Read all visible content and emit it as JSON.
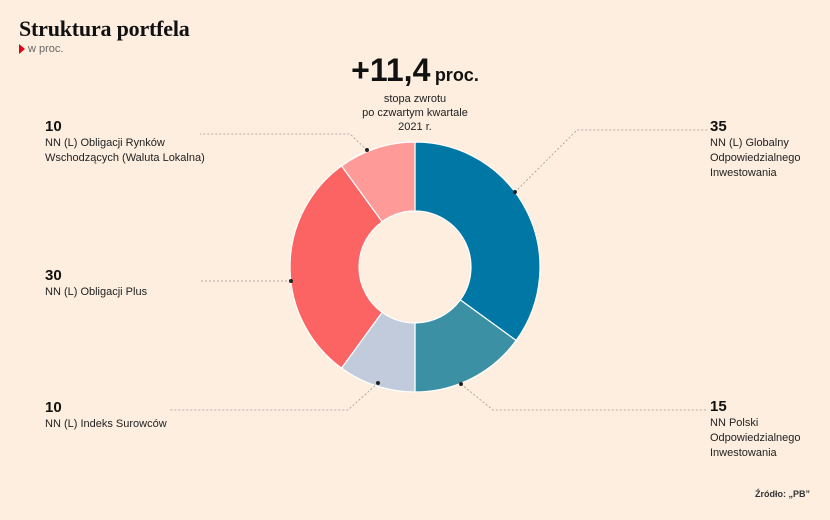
{
  "header": {
    "title": "Struktura portfela",
    "subtitle": "w proc."
  },
  "headline": {
    "value": "+11,4",
    "unit": "proc.",
    "caption": [
      "stopa zwrotu",
      "po czwartym kwartale",
      "2021 r."
    ]
  },
  "source": "Źródło: „PB”",
  "colors": {
    "background": "#fdeee0",
    "accent": "#e3001b",
    "globalny": "#0077a5",
    "polski": "#3b91a3",
    "surowcow": "#c1cbdc",
    "plus": "#fc6464",
    "rynkow": "#fe9a98"
  },
  "chart_data": {
    "type": "pie",
    "variant": "donut",
    "title": "Struktura portfela",
    "subtitle": "w proc.",
    "series": [
      {
        "label_lines": [
          "NN (L) Globalny",
          "Odpowiedzialnego",
          "Inwestowania"
        ],
        "value": 35,
        "color": "#0077a5"
      },
      {
        "label_lines": [
          "NN Polski",
          "Odpowiedzialnego",
          "Inwestowania"
        ],
        "value": 15,
        "color": "#3b91a3"
      },
      {
        "label_lines": [
          "NN (L) Indeks Surowców"
        ],
        "value": 10,
        "color": "#c1cbdc"
      },
      {
        "label_lines": [
          "NN (L) Obligacji Plus"
        ],
        "value": 30,
        "color": "#fc6464"
      },
      {
        "label_lines": [
          "NN (L) Obligacji Rynków",
          "Wschodzących (Waluta Lokalna)"
        ],
        "value": 10,
        "color": "#fe9a98"
      }
    ]
  }
}
